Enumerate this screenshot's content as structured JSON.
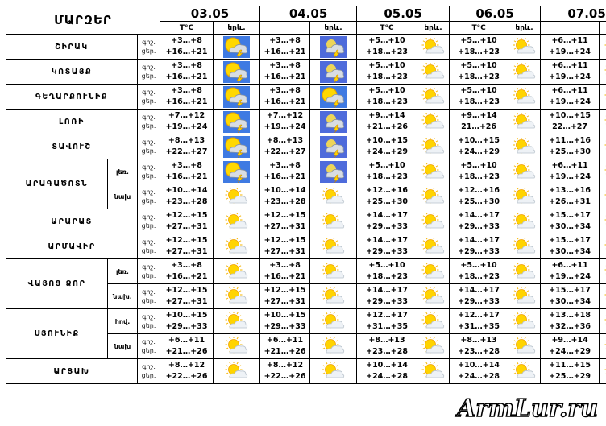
{
  "header": {
    "regions_title": "ՄԱՐԶԵՐ",
    "dates": [
      "03.05",
      "04.05",
      "05.05",
      "06.05",
      "07.05"
    ],
    "temp_label": "T°C",
    "phen_label": "երև."
  },
  "row_labels": {
    "night": "գիշ.",
    "day": "ցեր."
  },
  "rows": [
    {
      "region": "ՇԻՐԱԿ",
      "sub": "",
      "span": 1,
      "days": [
        {
          "night": "+3…+8",
          "day": "+16…+21",
          "icon": "sun-cloud-storm-icon"
        },
        {
          "night": "+3…+8",
          "day": "+16…+21",
          "icon": "cloud-storm-icon"
        },
        {
          "night": "+5…+10",
          "day": "+18…+23",
          "icon": "sun-cloud-icon"
        },
        {
          "night": "+5…+10",
          "day": "+18…+23",
          "icon": "sun-cloud-icon"
        },
        {
          "night": "+6…+11",
          "day": "+19…+24",
          "icon": "sun-cloud-icon"
        }
      ]
    },
    {
      "region": "ԿՈՏԱՅՔ",
      "sub": "",
      "span": 1,
      "days": [
        {
          "night": "+3…+8",
          "day": "+16…+21",
          "icon": "sun-cloud-storm-icon"
        },
        {
          "night": "+3…+8",
          "day": "+16…+21",
          "icon": "cloud-storm-icon"
        },
        {
          "night": "+5…+10",
          "day": "+18…+23",
          "icon": "sun-cloud-icon"
        },
        {
          "night": "+5…+10",
          "day": "+18…+23",
          "icon": "sun-cloud-icon"
        },
        {
          "night": "+6…+11",
          "day": "+19…+24",
          "icon": "sun-cloud-icon"
        }
      ]
    },
    {
      "region": "ԳԵՂԱՐՔՈՒՆԻՔ",
      "sub": "",
      "span": 1,
      "days": [
        {
          "night": "+3…+8",
          "day": "+16…+21",
          "icon": "sun-cloud-storm-icon"
        },
        {
          "night": "+3…+8",
          "day": "+16…+21",
          "icon": "sun-cloud-storm-icon"
        },
        {
          "night": "+5…+10",
          "day": "+18…+23",
          "icon": "sun-cloud-icon"
        },
        {
          "night": "+5…+10",
          "day": "+18…+23",
          "icon": "sun-cloud-icon"
        },
        {
          "night": "+6…+11",
          "day": "+19…+24",
          "icon": "sun-cloud-icon"
        }
      ]
    },
    {
      "region": "ԼՈՌԻ",
      "sub": "",
      "span": 1,
      "days": [
        {
          "night": "+7…+12",
          "day": "+19…+24",
          "icon": "sun-cloud-storm-icon"
        },
        {
          "night": "+7…+12",
          "day": "+19…+24",
          "icon": "cloud-storm-icon"
        },
        {
          "night": "+9…+14",
          "day": "+21…+26",
          "icon": "sun-cloud-icon"
        },
        {
          "night": "+9…+14",
          "day": "21…+26",
          "icon": "sun-cloud-icon"
        },
        {
          "night": "+10…+15",
          "day": "22…+27",
          "icon": "sun-cloud-icon"
        }
      ]
    },
    {
      "region": "ՏԱՎՈՒՇ",
      "sub": "",
      "span": 1,
      "days": [
        {
          "night": "+8…+13",
          "day": "+22…+27",
          "icon": "sun-cloud-storm-icon"
        },
        {
          "night": "+8…+13",
          "day": "+22…+27",
          "icon": "cloud-storm-icon"
        },
        {
          "night": "+10…+15",
          "day": "+24…+29",
          "icon": "sun-cloud-icon"
        },
        {
          "night": "+10…+15",
          "day": "+24…+29",
          "icon": "sun-cloud-icon"
        },
        {
          "night": "+11…+16",
          "day": "+25…+30",
          "icon": "sun-cloud-icon"
        }
      ]
    },
    {
      "region": "ԱՐԱԳԱԾՈՏՆ",
      "sub": "լեռ.",
      "span": 2,
      "days": [
        {
          "night": "+3…+8",
          "day": "+16…+21",
          "icon": "sun-cloud-storm-icon"
        },
        {
          "night": "+3…+8",
          "day": "+16…+21",
          "icon": "cloud-storm-icon"
        },
        {
          "night": "+5…+10",
          "day": "+18…+23",
          "icon": "sun-cloud-icon"
        },
        {
          "night": "+5…+10",
          "day": "+18…+23",
          "icon": "sun-cloud-icon"
        },
        {
          "night": "+6…+11",
          "day": "+19…+24",
          "icon": "sun-cloud-icon"
        }
      ]
    },
    {
      "region": "",
      "sub": "նախ",
      "span": 0,
      "days": [
        {
          "night": "+10…+14",
          "day": "+23…+28",
          "icon": "sun-cloud-icon"
        },
        {
          "night": "+10…+14",
          "day": "+23…+28",
          "icon": "sun-cloud-icon"
        },
        {
          "night": "+12…+16",
          "day": "+25…+30",
          "icon": "sun-cloud-icon"
        },
        {
          "night": "+12…+16",
          "day": "+25…+30",
          "icon": "sun-cloud-icon"
        },
        {
          "night": "+13…+16",
          "day": "+26…+31",
          "icon": "sun-cloud-icon"
        }
      ]
    },
    {
      "region": "ԱՐԱՐԱՏ",
      "sub": "",
      "span": 1,
      "days": [
        {
          "night": "+12…+15",
          "day": "+27…+31",
          "icon": "sun-cloud-icon"
        },
        {
          "night": "+12…+15",
          "day": "+27…+31",
          "icon": "sun-cloud-icon"
        },
        {
          "night": "+14…+17",
          "day": "+29…+33",
          "icon": "sun-cloud-icon"
        },
        {
          "night": "+14…+17",
          "day": "+29…+33",
          "icon": "sun-cloud-icon"
        },
        {
          "night": "+15…+17",
          "day": "+30…+34",
          "icon": "sun-cloud-icon"
        }
      ]
    },
    {
      "region": "ԱՐՄԱՎԻՐ",
      "sub": "",
      "span": 1,
      "days": [
        {
          "night": "+12…+15",
          "day": "+27…+31",
          "icon": "sun-cloud-icon"
        },
        {
          "night": "+12…+15",
          "day": "+27…+31",
          "icon": "sun-cloud-icon"
        },
        {
          "night": "+14…+17",
          "day": "+29…+33",
          "icon": "sun-cloud-icon"
        },
        {
          "night": "+14…+17",
          "day": "+29…+33",
          "icon": "sun-cloud-icon"
        },
        {
          "night": "+15…+17",
          "day": "+30…+34",
          "icon": "sun-cloud-icon"
        }
      ]
    },
    {
      "region": "ՎԱՅՈՑ ՁՈՐ",
      "sub": "լեռ.",
      "span": 2,
      "days": [
        {
          "night": "+3…+8",
          "day": "+16…+21",
          "icon": "sun-cloud-icon"
        },
        {
          "night": "+3…+8",
          "day": "+16…+21",
          "icon": "sun-cloud-icon"
        },
        {
          "night": "+5…+10",
          "day": "+18…+23",
          "icon": "sun-cloud-icon"
        },
        {
          "night": "+5…+10",
          "day": "+18…+23",
          "icon": "sun-cloud-icon"
        },
        {
          "night": "+6…+11",
          "day": "+19…+24",
          "icon": "sun-cloud-icon"
        }
      ]
    },
    {
      "region": "",
      "sub": "նախ.",
      "span": 0,
      "days": [
        {
          "night": "+12…+15",
          "day": "+27…+31",
          "icon": "sun-cloud-icon"
        },
        {
          "night": "+12…+15",
          "day": "+27…+31",
          "icon": "sun-cloud-icon"
        },
        {
          "night": "+14…+17",
          "day": "+29…+33",
          "icon": "sun-cloud-icon"
        },
        {
          "night": "+14…+17",
          "day": "+29…+33",
          "icon": "sun-cloud-icon"
        },
        {
          "night": "+15…+17",
          "day": "+30…+34",
          "icon": "sun-cloud-icon"
        }
      ]
    },
    {
      "region": "ՍՅՈՒՆԻՔ",
      "sub": "հով.",
      "span": 2,
      "days": [
        {
          "night": "+10…+15",
          "day": "+29…+33",
          "icon": "sun-cloud-icon"
        },
        {
          "night": "+10…+15",
          "day": "+29…+33",
          "icon": "sun-cloud-icon"
        },
        {
          "night": "+12…+17",
          "day": "+31…+35",
          "icon": "sun-cloud-icon"
        },
        {
          "night": "+12…+17",
          "day": "+31…+35",
          "icon": "sun-cloud-icon"
        },
        {
          "night": "+13…+18",
          "day": "+32…+36",
          "icon": "sun-cloud-icon"
        }
      ]
    },
    {
      "region": "",
      "sub": "նախ",
      "span": 0,
      "days": [
        {
          "night": "+6…+11",
          "day": "+21…+26",
          "icon": "sun-cloud-icon"
        },
        {
          "night": "+6…+11",
          "day": "+21…+26",
          "icon": "sun-cloud-icon"
        },
        {
          "night": "+8…+13",
          "day": "+23…+28",
          "icon": "sun-cloud-icon"
        },
        {
          "night": "+8…+13",
          "day": "+23…+28",
          "icon": "sun-cloud-icon"
        },
        {
          "night": "+9…+14",
          "day": "+24…+29",
          "icon": "sun-cloud-icon"
        }
      ]
    },
    {
      "region": "ԱՐՑԱԽ",
      "sub": "",
      "span": 1,
      "days": [
        {
          "night": "+8…+12",
          "day": "+22…+26",
          "icon": "sun-cloud-icon"
        },
        {
          "night": "+8…+12",
          "day": "+22…+26",
          "icon": "sun-cloud-icon"
        },
        {
          "night": "+10…+14",
          "day": "+24…+28",
          "icon": "sun-cloud-icon"
        },
        {
          "night": "+10…+14",
          "day": "+24…+28",
          "icon": "sun-cloud-icon"
        },
        {
          "night": "+11…+15",
          "day": "+25…+29",
          "icon": "sun-cloud-icon"
        }
      ]
    }
  ],
  "watermark": "ArmLur.ru"
}
